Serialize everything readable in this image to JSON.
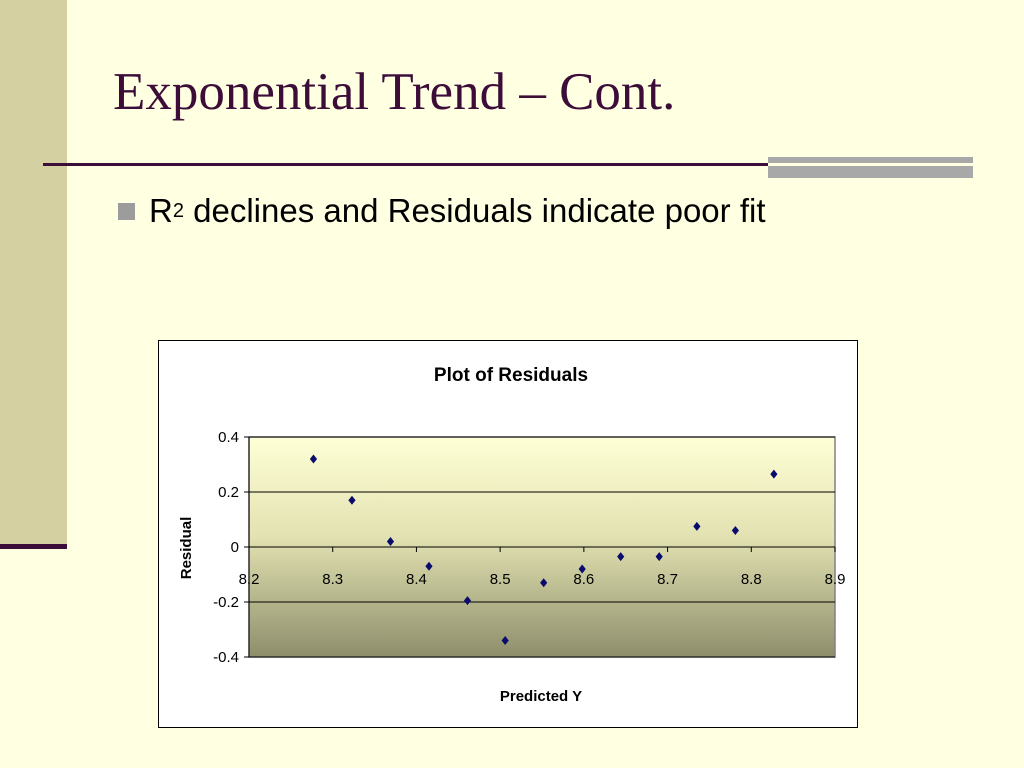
{
  "slide": {
    "title": "Exponential Trend – Cont.",
    "bullet": {
      "prefix": "R",
      "superscript": "2",
      "text": " declines and Residuals indicate poor fit"
    }
  },
  "colors": {
    "background": "#FFFFE1",
    "band": "#D5D0A1",
    "title": "#3D0D3A",
    "marker": "#0B0B6E"
  },
  "chart_data": {
    "type": "scatter",
    "title": "Plot of Residuals",
    "xlabel": "Predicted Y",
    "ylabel": "Residual",
    "xlim": [
      8.2,
      8.9
    ],
    "ylim": [
      -0.4,
      0.4
    ],
    "x_ticks": [
      "8.2",
      "8.3",
      "8.4",
      "8.5",
      "8.6",
      "8.7",
      "8.8",
      "8.9"
    ],
    "y_ticks": [
      "0.4",
      "0.2",
      "0",
      "-0.2",
      "-0.4"
    ],
    "grid": true,
    "legend": "none",
    "series": [
      {
        "marker": "diamond",
        "x": [
          8.277,
          8.323,
          8.369,
          8.415,
          8.461,
          8.506,
          8.552,
          8.598,
          8.644,
          8.69,
          8.735,
          8.781,
          8.827
        ],
        "y": [
          0.32,
          0.17,
          0.02,
          -0.07,
          -0.195,
          -0.34,
          -0.13,
          -0.08,
          -0.035,
          -0.035,
          0.075,
          0.06,
          0.265
        ]
      }
    ]
  }
}
